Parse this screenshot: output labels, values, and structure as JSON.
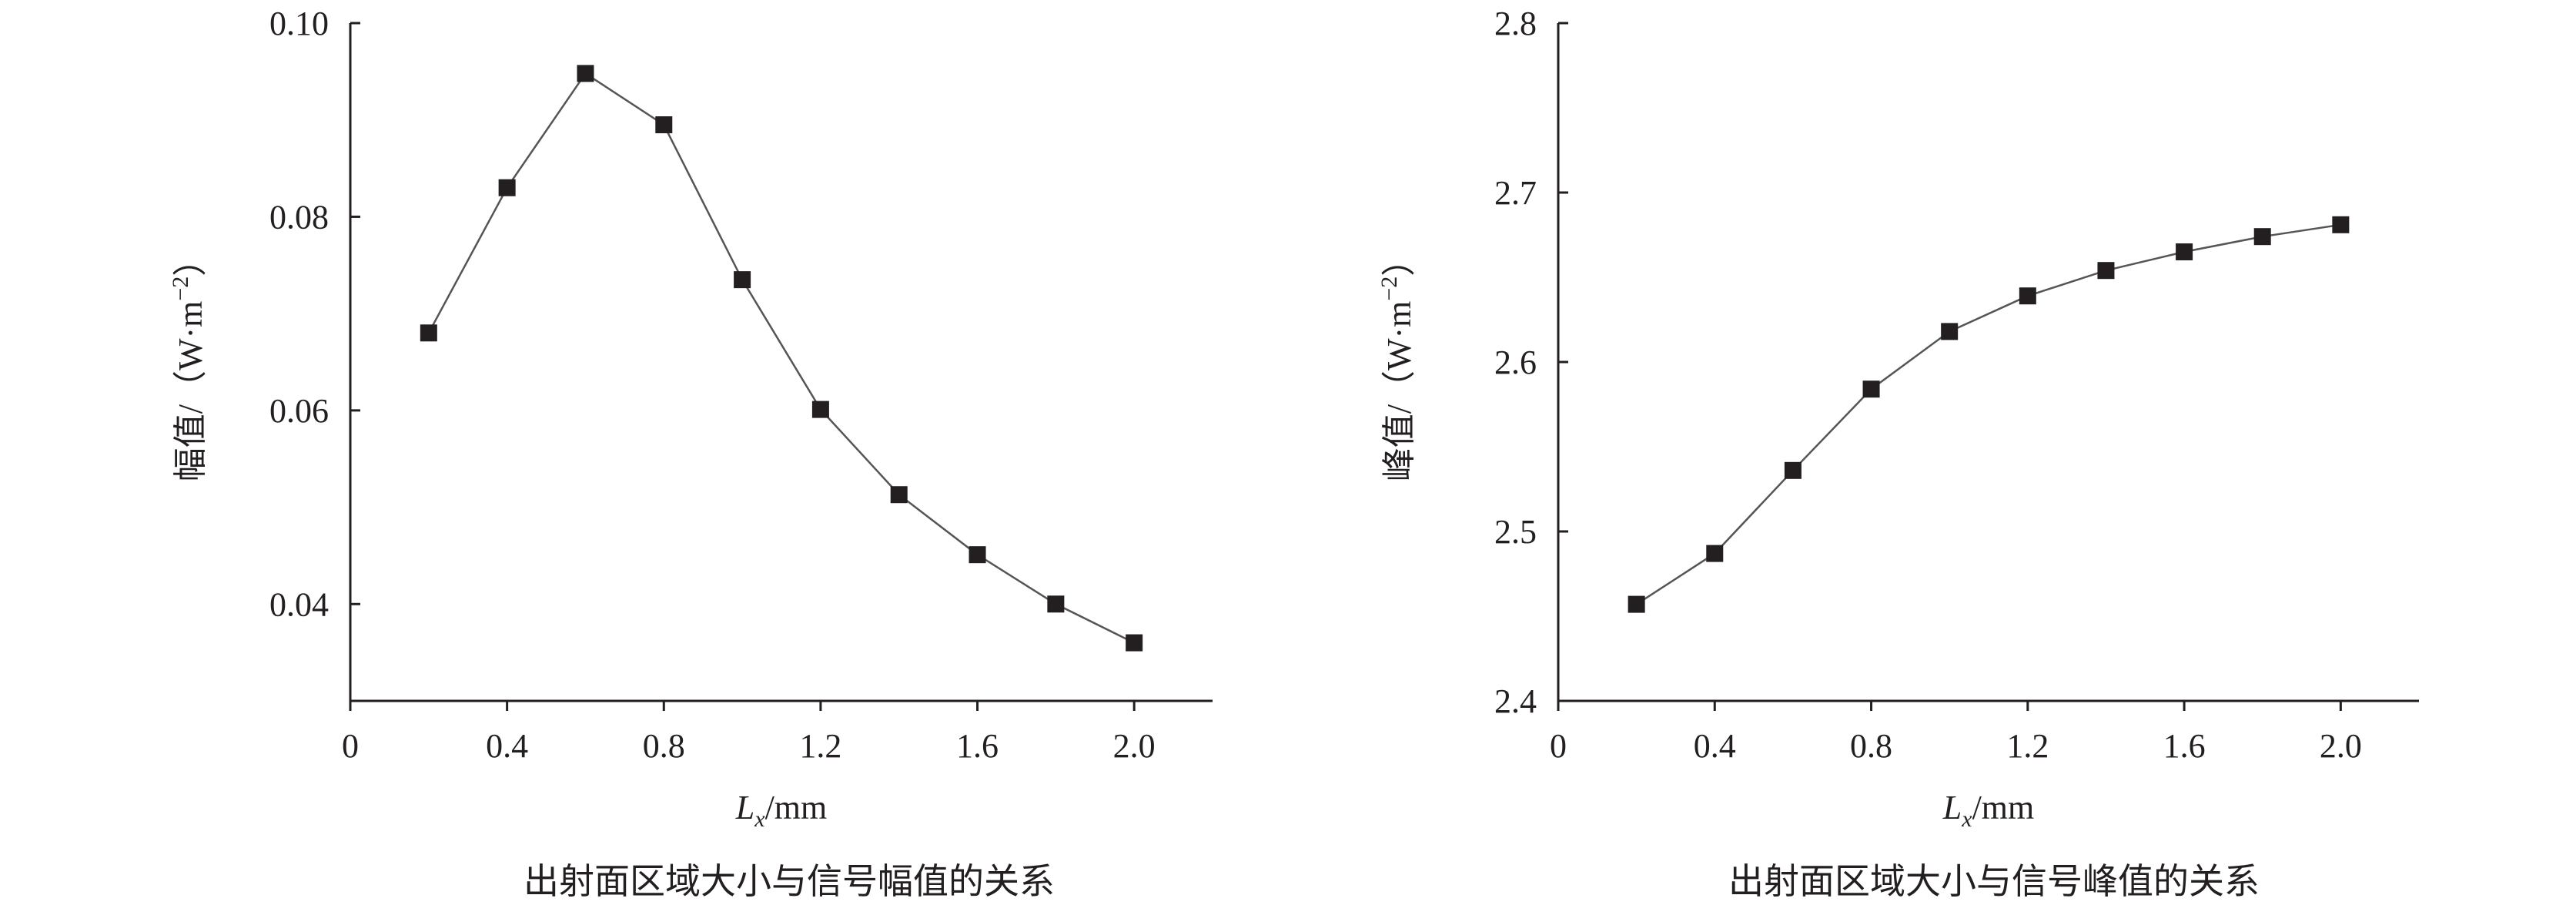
{
  "chart_data": [
    {
      "type": "line",
      "title": "出射面区域大小与信号幅值的关系",
      "xlabel_italic": "L",
      "xlabel_sub": "x",
      "xlabel_unit": "/mm",
      "ylabel": "幅值/（W·m",
      "ylabel_sup": "−2",
      "ylabel_close": "）",
      "xlim": [
        0,
        2.2
      ],
      "ylim": [
        0.03,
        0.1
      ],
      "xticks": [
        0,
        0.4,
        0.8,
        1.2,
        1.6,
        2.0
      ],
      "xtick_labels": [
        "0",
        "0.4",
        "0.8",
        "1.2",
        "1.6",
        "2.0"
      ],
      "yticks": [
        0.04,
        0.06,
        0.08,
        0.1
      ],
      "ytick_labels": [
        "0.04",
        "0.06",
        "0.08",
        "0.10"
      ],
      "marker_color": "#231f20",
      "line_color": "#555555",
      "x": [
        0.2,
        0.4,
        0.6,
        0.8,
        1.0,
        1.2,
        1.4,
        1.6,
        1.8,
        2.0
      ],
      "y": [
        0.068,
        0.083,
        0.0948,
        0.0895,
        0.0735,
        0.0601,
        0.0513,
        0.0451,
        0.04,
        0.036
      ]
    },
    {
      "type": "line",
      "title": "出射面区域大小与信号峰值的关系",
      "xlabel_italic": "L",
      "xlabel_sub": "x",
      "xlabel_unit": "/mm",
      "ylabel": "峰值/（W·m",
      "ylabel_sup": "−2",
      "ylabel_close": "）",
      "xlim": [
        0,
        2.2
      ],
      "ylim": [
        2.4,
        2.8
      ],
      "xticks": [
        0,
        0.4,
        0.8,
        1.2,
        1.6,
        2.0
      ],
      "xtick_labels": [
        "0",
        "0.4",
        "0.8",
        "1.2",
        "1.6",
        "2.0"
      ],
      "yticks": [
        2.4,
        2.5,
        2.6,
        2.7,
        2.8
      ],
      "ytick_labels": [
        "2.4",
        "2.5",
        "2.6",
        "2.7",
        "2.8"
      ],
      "marker_color": "#231f20",
      "line_color": "#555555",
      "x": [
        0.2,
        0.4,
        0.6,
        0.8,
        1.0,
        1.2,
        1.4,
        1.6,
        1.8,
        2.0
      ],
      "y": [
        2.457,
        2.487,
        2.536,
        2.584,
        2.618,
        2.639,
        2.654,
        2.665,
        2.674,
        2.681
      ]
    }
  ]
}
